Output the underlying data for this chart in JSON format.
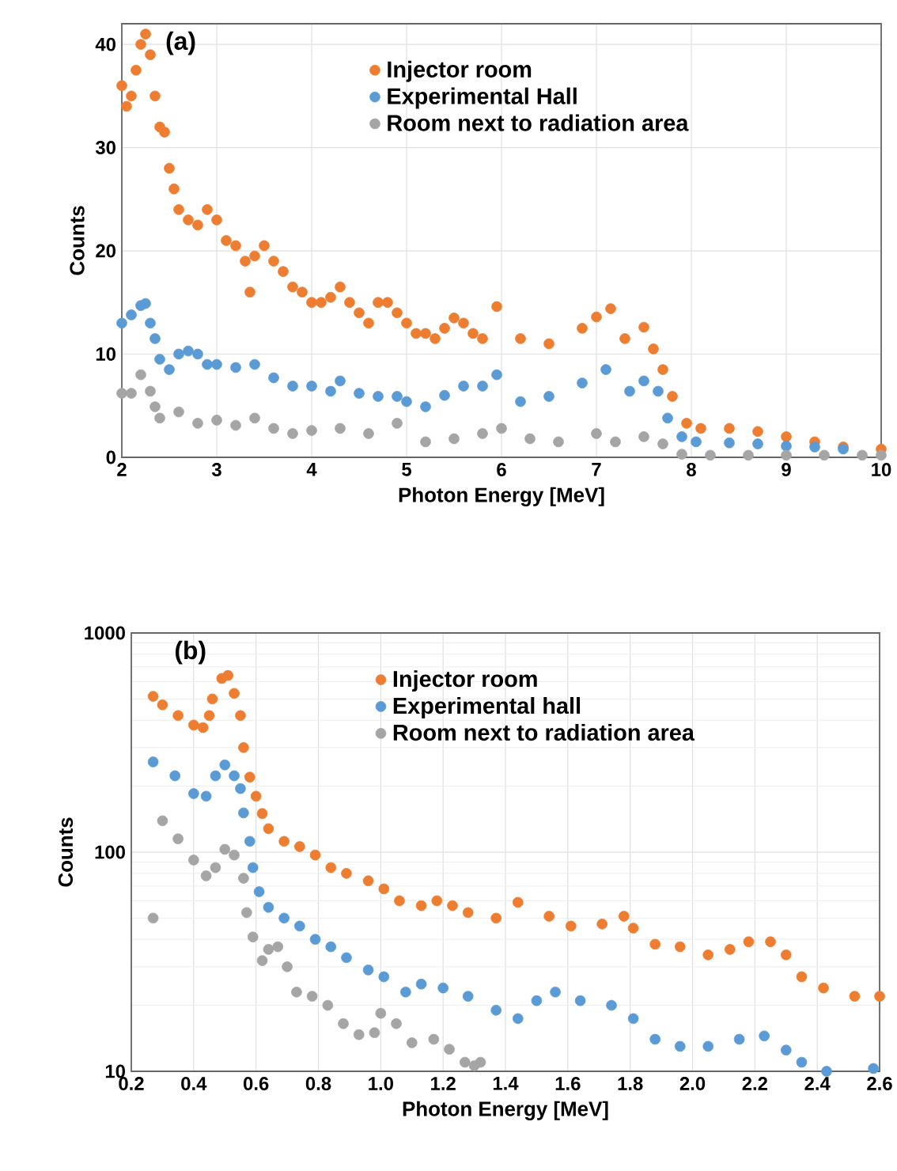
{
  "chart_data": [
    {
      "type": "scatter",
      "xlabel": "Photon Energy [MeV]",
      "ylabel": "Counts",
      "annotations": [
        "(a)"
      ],
      "xlim": [
        2,
        10
      ],
      "ylim": [
        0,
        42
      ],
      "xticks": [
        2,
        3,
        4,
        5,
        6,
        7,
        8,
        9,
        10
      ],
      "yticks": [
        0,
        10,
        20,
        30,
        40
      ],
      "grid": true,
      "legend": "top right",
      "series": [
        {
          "name": "Injector room",
          "color": "#ed7d31",
          "x": [
            2.0,
            2.05,
            2.1,
            2.15,
            2.2,
            2.25,
            2.3,
            2.35,
            2.4,
            2.45,
            2.5,
            2.55,
            2.6,
            2.7,
            2.8,
            2.9,
            3.0,
            3.1,
            3.2,
            3.3,
            3.35,
            3.4,
            3.5,
            3.6,
            3.7,
            3.8,
            3.9,
            4.0,
            4.1,
            4.2,
            4.3,
            4.4,
            4.5,
            4.6,
            4.7,
            4.8,
            4.9,
            5.0,
            5.1,
            5.2,
            5.3,
            5.4,
            5.5,
            5.6,
            5.7,
            5.8,
            5.95,
            6.2,
            6.5,
            6.85,
            7.0,
            7.15,
            7.3,
            7.5,
            7.6,
            7.7,
            7.8,
            7.95,
            8.1,
            8.4,
            8.7,
            9.0,
            9.3,
            9.6,
            10.0
          ],
          "values": [
            36,
            34,
            35,
            37.5,
            40,
            41,
            39,
            35,
            32,
            31.5,
            28,
            26,
            24,
            23,
            22.5,
            24,
            23,
            21,
            20.5,
            19,
            16,
            19.5,
            20.5,
            19,
            18,
            16.5,
            16,
            15,
            15,
            15.5,
            16.5,
            15,
            14,
            13,
            15,
            15,
            14,
            13,
            12,
            12,
            11.5,
            12.5,
            13.5,
            13,
            12,
            11.5,
            14.6,
            11.5,
            11,
            12.5,
            13.6,
            14.4,
            11.5,
            12.6,
            10.5,
            8.5,
            5.9,
            3.3,
            2.8,
            2.8,
            2.5,
            2,
            1.5,
            1,
            0.8
          ]
        },
        {
          "name": "Experimental Hall",
          "color": "#5b9bd5",
          "x": [
            2.0,
            2.1,
            2.2,
            2.25,
            2.3,
            2.35,
            2.4,
            2.5,
            2.6,
            2.7,
            2.8,
            2.9,
            3.0,
            3.2,
            3.4,
            3.6,
            3.8,
            4.0,
            4.2,
            4.3,
            4.5,
            4.7,
            4.9,
            5.0,
            5.2,
            5.4,
            5.6,
            5.8,
            5.95,
            6.2,
            6.5,
            6.85,
            7.1,
            7.35,
            7.5,
            7.65,
            7.75,
            7.9,
            8.05,
            8.4,
            8.7,
            9.0,
            9.3,
            9.6
          ],
          "values": [
            13,
            13.8,
            14.7,
            14.9,
            13,
            11.5,
            9.5,
            8.5,
            10,
            10.3,
            10,
            9,
            9,
            8.7,
            9,
            7.7,
            6.9,
            6.9,
            6.4,
            7.4,
            6.2,
            5.9,
            5.9,
            5.4,
            4.9,
            6,
            6.9,
            6.9,
            8,
            5.4,
            5.9,
            7.2,
            8.5,
            6.4,
            7.4,
            6.4,
            3.8,
            2,
            1.5,
            1.4,
            1.3,
            1.1,
            1,
            0.8
          ]
        },
        {
          "name": "Room next to radiation area",
          "color": "#a5a5a5",
          "x": [
            2.0,
            2.1,
            2.2,
            2.3,
            2.35,
            2.4,
            2.6,
            2.8,
            3.0,
            3.2,
            3.4,
            3.6,
            3.8,
            4.0,
            4.3,
            4.6,
            4.9,
            5.2,
            5.5,
            5.8,
            6.0,
            6.3,
            6.6,
            7.0,
            7.2,
            7.5,
            7.7,
            7.9,
            8.2,
            8.6,
            9.0,
            9.4,
            9.8,
            10.0
          ],
          "values": [
            6.2,
            6.2,
            8,
            6.4,
            4.9,
            3.8,
            4.4,
            3.3,
            3.6,
            3.1,
            3.8,
            2.8,
            2.3,
            2.6,
            2.8,
            2.3,
            3.3,
            1.5,
            1.8,
            2.3,
            2.8,
            1.8,
            1.5,
            2.3,
            1.5,
            2,
            1.3,
            0.3,
            0.2,
            0.2,
            0.2,
            0.2,
            0.2,
            0.2
          ]
        }
      ]
    },
    {
      "type": "scatter",
      "xlabel": "Photon Energy [MeV]",
      "ylabel": "Counts",
      "annotations": [
        "(b)"
      ],
      "log": "y",
      "xlim": [
        0.2,
        2.6
      ],
      "ylim": [
        10,
        1000
      ],
      "xticks": [
        {
          "value": 0.2,
          "label": "0.2"
        },
        {
          "value": 0.4,
          "label": "0.4"
        },
        {
          "value": 0.6,
          "label": "0.6"
        },
        {
          "value": 0.8,
          "label": "0.8"
        },
        {
          "value": 1.0,
          "label": "1.0"
        },
        {
          "value": 1.2,
          "label": "1.2"
        },
        {
          "value": 1.4,
          "label": "1.4"
        },
        {
          "value": 1.6,
          "label": "1.6"
        },
        {
          "value": 1.8,
          "label": "1.8"
        },
        {
          "value": 2.0,
          "label": "2.0"
        },
        {
          "value": 2.2,
          "label": "2.2"
        },
        {
          "value": 2.4,
          "label": "2.4"
        },
        {
          "value": 2.6,
          "label": "2.6"
        }
      ],
      "yticks": [
        10,
        100,
        1000
      ],
      "grid": true,
      "legend": "top right",
      "series": [
        {
          "name": "Injector room",
          "color": "#ed7d31",
          "x": [
            0.27,
            0.3,
            0.35,
            0.4,
            0.43,
            0.45,
            0.46,
            0.49,
            0.51,
            0.53,
            0.55,
            0.56,
            0.58,
            0.6,
            0.62,
            0.64,
            0.69,
            0.74,
            0.79,
            0.84,
            0.89,
            0.96,
            1.01,
            1.06,
            1.13,
            1.18,
            1.23,
            1.28,
            1.37,
            1.44,
            1.54,
            1.61,
            1.71,
            1.78,
            1.81,
            1.88,
            1.96,
            2.05,
            2.12,
            2.18,
            2.25,
            2.3,
            2.35,
            2.42,
            2.52,
            2.6
          ],
          "values": [
            514,
            470,
            420,
            380,
            370,
            420,
            500,
            620,
            640,
            530,
            420,
            300,
            220,
            180,
            150,
            128,
            112,
            106,
            97,
            85,
            80,
            74,
            68,
            60,
            57,
            60,
            57,
            53,
            50,
            59,
            51,
            46,
            47,
            51,
            45,
            38,
            37,
            34,
            36,
            39,
            39,
            34,
            27,
            24,
            22,
            22
          ]
        },
        {
          "name": "Experimental hall",
          "color": "#5b9bd5",
          "x": [
            0.27,
            0.34,
            0.4,
            0.44,
            0.47,
            0.5,
            0.53,
            0.55,
            0.56,
            0.58,
            0.59,
            0.61,
            0.64,
            0.69,
            0.74,
            0.79,
            0.84,
            0.89,
            0.96,
            1.01,
            1.08,
            1.13,
            1.2,
            1.28,
            1.37,
            1.44,
            1.5,
            1.56,
            1.64,
            1.74,
            1.81,
            1.88,
            1.96,
            2.05,
            2.15,
            2.23,
            2.3,
            2.35,
            2.43,
            2.58
          ],
          "values": [
            258,
            223,
            185,
            180,
            223,
            250,
            223,
            195,
            151,
            112,
            85,
            66,
            56,
            50,
            46,
            40,
            37,
            33,
            29,
            27,
            23,
            25,
            24,
            22,
            19,
            17.4,
            21,
            23,
            21,
            20,
            17.4,
            14,
            13,
            13,
            14,
            14.5,
            12.5,
            11,
            10,
            10.3
          ]
        },
        {
          "name": "Room next to radiation area",
          "color": "#a5a5a5",
          "x": [
            0.27,
            0.3,
            0.35,
            0.4,
            0.44,
            0.47,
            0.5,
            0.53,
            0.56,
            0.57,
            0.59,
            0.62,
            0.64,
            0.67,
            0.7,
            0.73,
            0.78,
            0.83,
            0.88,
            0.93,
            0.98,
            1.0,
            1.05,
            1.1,
            1.17,
            1.22,
            1.27,
            1.3,
            1.32
          ],
          "values": [
            50,
            139,
            115,
            92,
            78,
            85,
            103,
            97,
            76,
            53,
            41,
            32,
            36,
            37,
            30,
            23,
            22,
            20,
            16.5,
            14.7,
            15,
            18.4,
            16.5,
            13.5,
            14,
            12.6,
            11,
            10.6,
            11
          ]
        }
      ]
    }
  ]
}
